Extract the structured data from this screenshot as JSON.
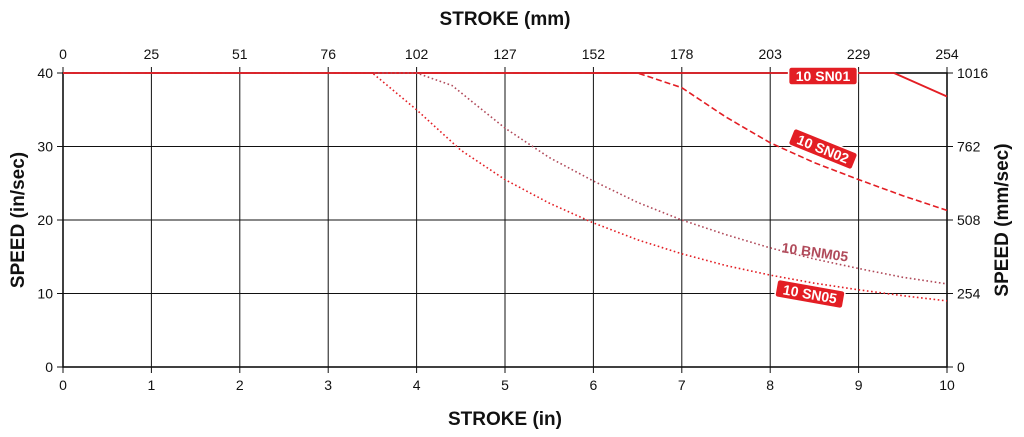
{
  "chart_data": {
    "type": "line",
    "xlabel_bottom": "STROKE (in)",
    "xlabel_top": "STROKE (mm)",
    "ylabel_left": "SPEED (in/sec)",
    "ylabel_right": "SPEED (mm/sec)",
    "xlim": [
      0,
      10
    ],
    "ylim": [
      0,
      40
    ],
    "grid": true,
    "x_ticks_bottom": [
      "0",
      "1",
      "2",
      "3",
      "4",
      "5",
      "6",
      "7",
      "8",
      "9",
      "10"
    ],
    "x_ticks_top": [
      "0",
      "25",
      "51",
      "76",
      "102",
      "127",
      "152",
      "178",
      "203",
      "229",
      "254"
    ],
    "y_ticks_left": [
      "0",
      "10",
      "20",
      "30",
      "40"
    ],
    "y_ticks_right": [
      "0",
      "254",
      "508",
      "762",
      "1016"
    ],
    "series": [
      {
        "name": "10 SN01",
        "color": "#e31e24",
        "dash": "solid",
        "label_style": "badge",
        "x": [
          0,
          9.4,
          10
        ],
        "y": [
          40,
          40,
          36.8
        ]
      },
      {
        "name": "10 SN02",
        "color": "#e31e24",
        "dash": "dashed",
        "label_style": "badge",
        "x": [
          0,
          6.5,
          7,
          7.5,
          8,
          8.5,
          9,
          9.5,
          10
        ],
        "y": [
          40,
          40,
          38,
          34,
          30.5,
          27.8,
          25.5,
          23.3,
          21.3
        ]
      },
      {
        "name": "10 BNM05",
        "color": "#b04a5a",
        "dash": "dotted",
        "label_style": "plain",
        "x": [
          0,
          4,
          4.4,
          5,
          5.5,
          6,
          6.5,
          7,
          7.5,
          8,
          8.5,
          9,
          9.5,
          10
        ],
        "y": [
          40,
          40,
          38.3,
          32.5,
          28.5,
          25.3,
          22.4,
          20,
          18,
          16.2,
          14.7,
          13.4,
          12.2,
          11.3
        ]
      },
      {
        "name": "10 SN05",
        "color": "#e31e24",
        "dash": "dotted",
        "label_style": "badge",
        "x": [
          0,
          3.5,
          4,
          4.5,
          5,
          5.5,
          6,
          6.5,
          7,
          7.5,
          8,
          8.5,
          9,
          9.5,
          10
        ],
        "y": [
          40,
          40,
          35,
          29.5,
          25.5,
          22.3,
          19.6,
          17.3,
          15.4,
          13.8,
          12.5,
          11.4,
          10.5,
          9.7,
          9
        ]
      }
    ]
  }
}
